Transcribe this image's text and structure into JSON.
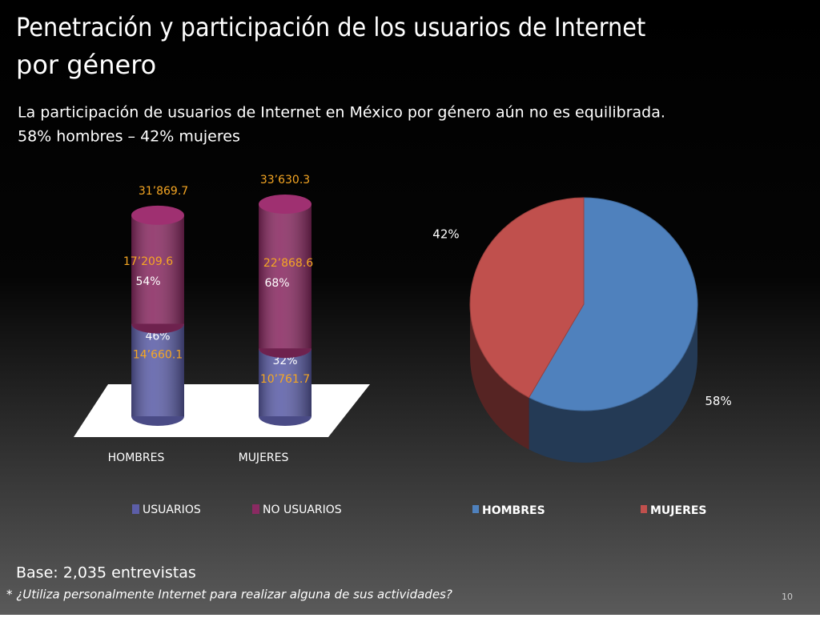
{
  "slide": {
    "title_lines": [
      "Penetración y participación de los usuarios de Internet",
      "por género"
    ],
    "subtitle_lines": [
      "La participación de usuarios de Internet en México por género aún no es equilibrada.",
      "58% hombres – 42% mujeres"
    ],
    "base": "Base: 2,035 entrevistas",
    "footnote": "* ¿Utiliza personalmente  Internet para realizar alguna de sus actividades?",
    "page": "10"
  },
  "chart_data": [
    {
      "type": "bar",
      "categories": [
        "HOMBRES",
        "MUJERES"
      ],
      "totals": [
        31869.7,
        33630.3
      ],
      "total_labels": [
        "31’869.7",
        "33’630.3"
      ],
      "series": [
        {
          "name": "USUARIOS",
          "color": "#5c5ea8",
          "values": [
            14660.1,
            10761.7
          ],
          "value_labels": [
            "14’660.1",
            "10’761.7"
          ],
          "percents": [
            46,
            32
          ],
          "percent_labels": [
            "46%",
            "32%"
          ]
        },
        {
          "name": "NO USUARIOS",
          "color": "#8a2a62",
          "values": [
            17209.6,
            22868.6
          ],
          "value_labels": [
            "17’209.6",
            "22’868.6"
          ],
          "percents": [
            54,
            68
          ],
          "percent_labels": [
            "54%",
            "68%"
          ]
        }
      ]
    },
    {
      "type": "pie",
      "categories": [
        "HOMBRES",
        "MUJERES"
      ],
      "values": [
        58,
        42
      ],
      "value_labels": [
        "58%",
        "42%"
      ],
      "colors": [
        "#4f81bd",
        "#c0504d"
      ]
    }
  ]
}
